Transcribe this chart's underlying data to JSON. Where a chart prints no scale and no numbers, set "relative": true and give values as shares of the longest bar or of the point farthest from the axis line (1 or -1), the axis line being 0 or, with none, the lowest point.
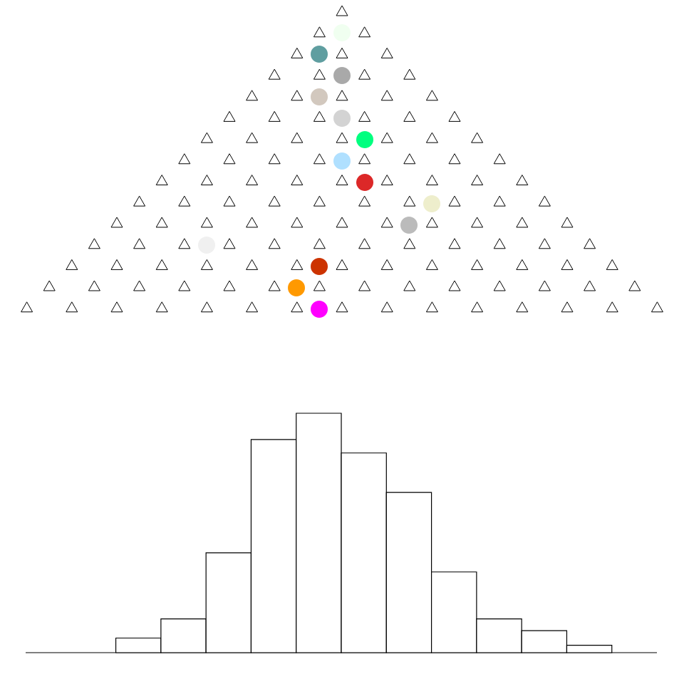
{
  "chart_data": {
    "type": "bar",
    "relative": true,
    "color": "#ffffff",
    "categories": [
      null,
      null,
      null,
      null,
      null,
      null,
      null,
      null,
      null,
      null,
      null
    ],
    "values": [
      0.061,
      0.141,
      0.417,
      0.89,
      1,
      0.834,
      0.669,
      0.337,
      0.141,
      0.092,
      0.031
    ]
  }
}
